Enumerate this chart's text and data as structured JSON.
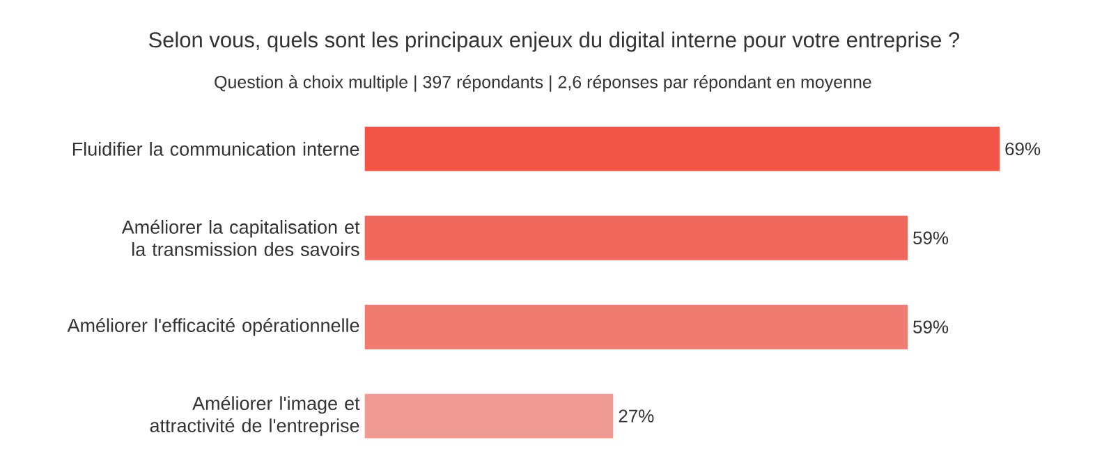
{
  "chart_data": {
    "type": "bar",
    "orientation": "horizontal",
    "title": "Selon vous, quels sont les principaux enjeux du digital interne pour votre entreprise ?",
    "subtitle": "Question à choix multiple | 397 répondants | 2,6 réponses par répondant en moyenne",
    "categories": [
      "Fluidifier la communication interne",
      "Améliorer la capitalisation et la transmission des savoirs",
      "Améliorer l'efficacité opérationnelle",
      "Améliorer l'image et attractivité de l'entreprise"
    ],
    "values": [
      69,
      59,
      59,
      27
    ],
    "colors": [
      "#f25546",
      "#f0675b",
      "#f07b71",
      "#ef9a92"
    ],
    "value_labels": [
      "69%",
      "59%",
      "59%",
      "27%"
    ]
  }
}
